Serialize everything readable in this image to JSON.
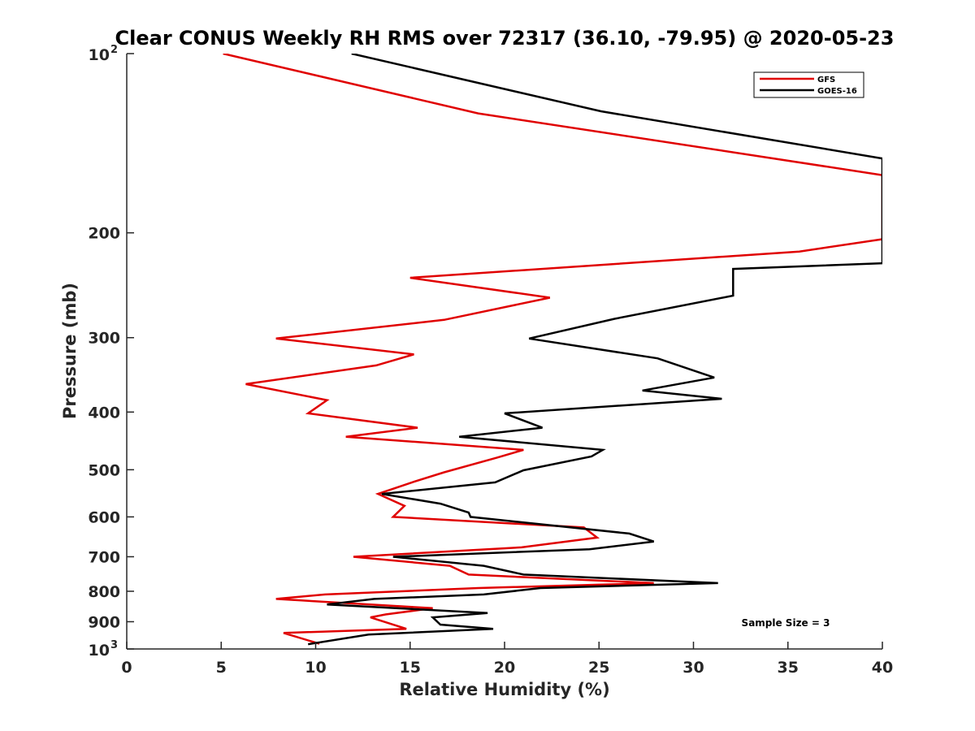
{
  "chart_data": {
    "type": "line",
    "title": "Clear CONUS Weekly RH RMS over 72317 (36.10, -79.95) @ 2020-05-23",
    "xlabel": "Relative Humidity (%)",
    "ylabel": "Pressure (mb)",
    "xlim": [
      0,
      40
    ],
    "ylim": [
      100,
      1000
    ],
    "y_scale": "log",
    "y_reversed": true,
    "x_ticks": [
      "0",
      "5",
      "10",
      "15",
      "20",
      "25",
      "30",
      "35",
      "40"
    ],
    "y_ticks": [
      {
        "value": 100,
        "label": "10",
        "sup": "2"
      },
      {
        "value": 200,
        "label": "200",
        "sup": ""
      },
      {
        "value": 300,
        "label": "300",
        "sup": ""
      },
      {
        "value": 400,
        "label": "400",
        "sup": ""
      },
      {
        "value": 500,
        "label": "500",
        "sup": ""
      },
      {
        "value": 600,
        "label": "600",
        "sup": ""
      },
      {
        "value": 700,
        "label": "700",
        "sup": ""
      },
      {
        "value": 800,
        "label": "800",
        "sup": ""
      },
      {
        "value": 900,
        "label": "900",
        "sup": ""
      },
      {
        "value": 1000,
        "label": "10",
        "sup": "3"
      }
    ],
    "grid": false,
    "legend_position": "top-right",
    "annotation": "Sample Size = 3",
    "series": [
      {
        "name": "GFS",
        "color": "#e00000",
        "points": [
          [
            5.1,
            100
          ],
          [
            18.6,
            126
          ],
          [
            40,
            160
          ],
          [
            40,
            205
          ],
          [
            35.6,
            215
          ],
          [
            15,
            238
          ],
          [
            22.4,
            257
          ],
          [
            16.8,
            280
          ],
          [
            7.9,
            301
          ],
          [
            15.2,
            320
          ],
          [
            13.2,
            334
          ],
          [
            6.3,
            359
          ],
          [
            10.6,
            382
          ],
          [
            9.6,
            402
          ],
          [
            15.4,
            425
          ],
          [
            11.6,
            440
          ],
          [
            21,
            463
          ],
          [
            19.6,
            477
          ],
          [
            16.8,
            505
          ],
          [
            15.1,
            525
          ],
          [
            13.3,
            549
          ],
          [
            14.7,
            575
          ],
          [
            14.1,
            600
          ],
          [
            24.2,
            625
          ],
          [
            24.9,
            650
          ],
          [
            20.9,
            675
          ],
          [
            12,
            700
          ],
          [
            17.1,
            725
          ],
          [
            18.1,
            750
          ],
          [
            27.9,
            775
          ],
          [
            18.6,
            790
          ],
          [
            10.5,
            810
          ],
          [
            7.9,
            824
          ],
          [
            16.2,
            854
          ],
          [
            13.7,
            875
          ],
          [
            12.9,
            885
          ],
          [
            14.8,
            925
          ],
          [
            8.3,
            940
          ],
          [
            10.2,
            980
          ]
        ]
      },
      {
        "name": "GOES-16",
        "color": "#000000",
        "points": [
          [
            11.9,
            100
          ],
          [
            25.1,
            125
          ],
          [
            40,
            150
          ],
          [
            40,
            225
          ],
          [
            32.1,
            230
          ],
          [
            32.1,
            255
          ],
          [
            25.8,
            279
          ],
          [
            21.3,
            301
          ],
          [
            28.1,
            325
          ],
          [
            31.1,
            350
          ],
          [
            27.3,
            368
          ],
          [
            31.5,
            380
          ],
          [
            20,
            402
          ],
          [
            22,
            425
          ],
          [
            17.6,
            440
          ],
          [
            25.2,
            463
          ],
          [
            24.6,
            475
          ],
          [
            21,
            501
          ],
          [
            19.5,
            525
          ],
          [
            13.5,
            549
          ],
          [
            16.6,
            570
          ],
          [
            18.1,
            590
          ],
          [
            18.2,
            600
          ],
          [
            26.6,
            640
          ],
          [
            27.9,
            660
          ],
          [
            24.5,
            680
          ],
          [
            14.1,
            700
          ],
          [
            18.9,
            725
          ],
          [
            21,
            750
          ],
          [
            31.3,
            775
          ],
          [
            21.9,
            790
          ],
          [
            18.9,
            810
          ],
          [
            13.1,
            824
          ],
          [
            10.6,
            842
          ],
          [
            19.1,
            870
          ],
          [
            16.2,
            885
          ],
          [
            16.6,
            910
          ],
          [
            19.4,
            925
          ],
          [
            12.8,
            946
          ],
          [
            9.6,
            982
          ]
        ]
      }
    ]
  }
}
